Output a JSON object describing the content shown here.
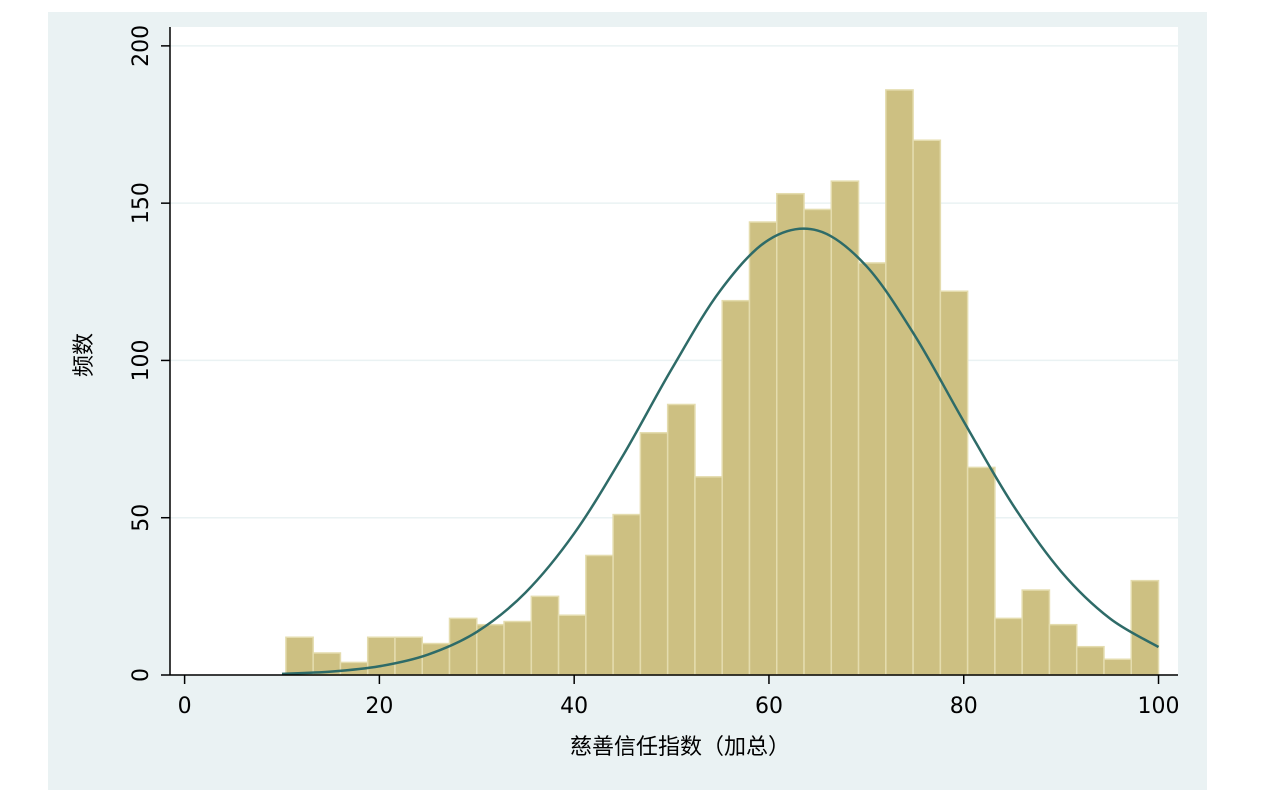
{
  "chart_data": {
    "type": "histogram",
    "xlabel": "慈善信任指数（加总）",
    "ylabel": "频数",
    "bins": [
      10.4,
      13.2,
      16,
      18.8,
      21.6,
      24.4,
      27.2,
      30,
      32.8,
      35.6,
      38.4,
      41.2,
      44,
      46.8,
      49.6,
      52.4,
      55.2,
      58,
      60.8,
      63.6,
      66.4,
      69.2,
      72,
      74.8,
      77.6,
      80.4,
      83.2,
      86,
      88.8,
      91.6,
      94.4,
      97.2,
      100
    ],
    "values": [
      12,
      7,
      4,
      12,
      12,
      10,
      18,
      16,
      17,
      25,
      19,
      38,
      51,
      77,
      86,
      63,
      119,
      144,
      153,
      148,
      157,
      131,
      186,
      170,
      122,
      66,
      18,
      27,
      16,
      9,
      5,
      30
    ],
    "color": "#cdc082",
    "curve": {
      "x": [
        10,
        15,
        20,
        25,
        30,
        35,
        40,
        45,
        50,
        55,
        60,
        65,
        70,
        75,
        80,
        85,
        90,
        95,
        100
      ],
      "values": [
        0.37,
        1.06,
        2.77,
        6.5,
        13.7,
        26.2,
        45.0,
        69.7,
        97.2,
        122.2,
        138.4,
        141.3,
        130.0,
        107.8,
        80.6,
        54.3,
        32.9,
        18.0,
        8.9
      ],
      "color": "#2e6b68"
    },
    "xlim": [
      -1.5,
      102
    ],
    "xticks": [
      0,
      20,
      40,
      60,
      80,
      100
    ],
    "ylim": [
      0,
      206
    ],
    "yticks": [
      0,
      50,
      100,
      150,
      200
    ],
    "grid": true
  }
}
